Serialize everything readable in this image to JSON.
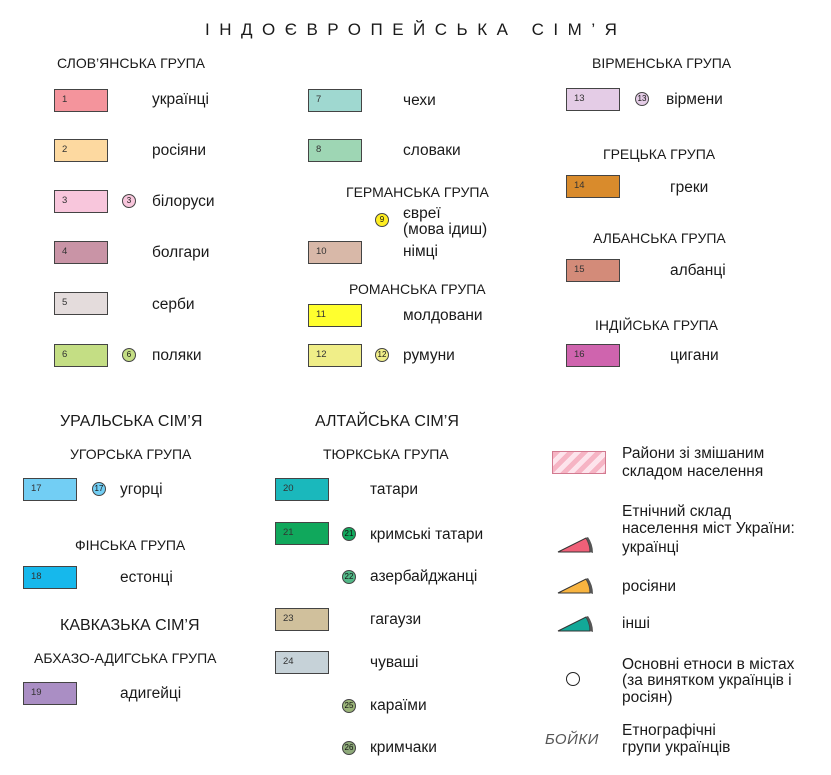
{
  "title": "ІНДОЄВРОПЕЙСЬКА СІМ’Я",
  "groups": {
    "slavic": "СЛОВ’ЯНСЬКА ГРУПА",
    "armenian": "ВІРМЕНСЬКА ГРУПА",
    "germanic": "ГЕРМАНСЬКА ГРУПА",
    "greek": "ГРЕЦЬКА ГРУПА",
    "albanian": "АЛБАНСЬКА ГРУПА",
    "romance": "РОМАНСЬКА ГРУПА",
    "indian": "ІНДІЙСЬКА ГРУПА",
    "ugric": "УГОРСЬКА ГРУПА",
    "turkic": "ТЮРКСЬКА ГРУПА",
    "finnic": "ФІНСЬКА ГРУПА",
    "abkhaz_adyghe": "АБХАЗО-АДИГСЬКА ГРУПА"
  },
  "families": {
    "uralic": "УРАЛЬСЬКА СІМ’Я",
    "altaic": "АЛТАЙСЬКА СІМ’Я",
    "caucasian": "КАВКАЗЬКА СІМ’Я"
  },
  "peoples": [
    {
      "n": "1",
      "label": "українці",
      "color": "#f4949c"
    },
    {
      "n": "2",
      "label": "росіяни",
      "color": "#fdd9a0"
    },
    {
      "n": "3",
      "label": "білоруси",
      "color": "#f8c6dc"
    },
    {
      "n": "4",
      "label": "болгари",
      "color": "#c994a6"
    },
    {
      "n": "5",
      "label": "серби",
      "color": "#e4dcdc"
    },
    {
      "n": "6",
      "label": "поляки",
      "color": "#c4de84"
    },
    {
      "n": "7",
      "label": "чехи",
      "color": "#9fd8d0"
    },
    {
      "n": "8",
      "label": "словаки",
      "color": "#9ed6b4"
    },
    {
      "n": "9",
      "label": "євреї\n(мова ідиш)",
      "color": "#ffee22"
    },
    {
      "n": "10",
      "label": "німці",
      "color": "#d8b8a8"
    },
    {
      "n": "11",
      "label": "молдовани",
      "color": "#ffff2e"
    },
    {
      "n": "12",
      "label": "румуни",
      "color": "#f0ee88"
    },
    {
      "n": "13",
      "label": "вірмени",
      "color": "#e4cce6"
    },
    {
      "n": "14",
      "label": "греки",
      "color": "#d98b2c"
    },
    {
      "n": "15",
      "label": "албанці",
      "color": "#d38b79"
    },
    {
      "n": "16",
      "label": "цигани",
      "color": "#cf64ae"
    },
    {
      "n": "17",
      "label": "угорці",
      "color": "#72cef4"
    },
    {
      "n": "18",
      "label": "естонці",
      "color": "#16b8ec"
    },
    {
      "n": "19",
      "label": "адигейці",
      "color": "#aa8ec4"
    },
    {
      "n": "20",
      "label": "татари",
      "color": "#1ab8bc"
    },
    {
      "n": "21",
      "label": "кримські татари",
      "color": "#10a85c"
    },
    {
      "n": "22",
      "label": "азербайджанці",
      "color": "#52b887"
    },
    {
      "n": "23",
      "label": "гагаузи",
      "color": "#d0c09c"
    },
    {
      "n": "24",
      "label": "чуваші",
      "color": "#c6d2d8"
    },
    {
      "n": "25",
      "label": "караїми",
      "color": "#9ab478"
    },
    {
      "n": "26",
      "label": "кримчаки",
      "color": "#8eaa7a"
    }
  ],
  "extras": {
    "mixed": "Райони зі змішаним\nскладом населення",
    "cities_heading": "Етнічний склад\nнаселення міст України:",
    "cities_ukrainians": "українці",
    "cities_russians": "росіяни",
    "cities_others": "інші",
    "main_ethnos": "Основні етноси в містах\n(за винятком українців і\nросіян)",
    "boyky": "БОЙКИ",
    "ethno_groups": "Етнографічні\nгрупи українців"
  },
  "colors": {
    "sector_ukr": "#f06078",
    "sector_rus": "#f8b440",
    "sector_oth": "#12a898",
    "mixed_a": "#f6b4c4",
    "mixed_b": "#fde4ec"
  }
}
